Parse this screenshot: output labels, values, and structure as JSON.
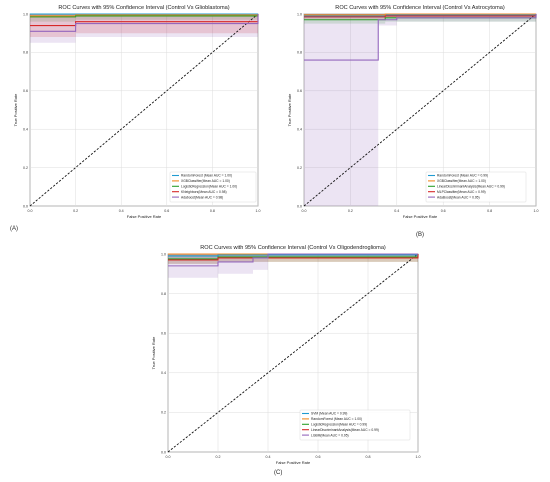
{
  "figure": {
    "panel_labels": [
      "(A)",
      "(B)",
      "(C)"
    ]
  },
  "chart_data": [
    {
      "type": "line",
      "title": "ROC Curves with 95% Confidence Interval  (Control Vs Glioblastoma)",
      "xlabel": "False Positive Rate",
      "ylabel": "True Positive Rate",
      "xlim": [
        0,
        1
      ],
      "ylim": [
        0,
        1
      ],
      "xticks": [
        "0.0",
        "0.2",
        "0.4",
        "0.6",
        "0.8",
        "1.0"
      ],
      "yticks": [
        "0.0",
        "0.2",
        "0.4",
        "0.6",
        "0.8",
        "1.0"
      ],
      "grid": true,
      "legend_position": "lower-right",
      "diagonal": true,
      "series": [
        {
          "name": "RandomForest (Mean AUC = 1.00)",
          "color": "#1f9bd1",
          "x": [
            0,
            0.2,
            1
          ],
          "y": [
            1.0,
            1.0,
            1.0
          ],
          "band_low": [
            0.99,
            0.99,
            1.0
          ],
          "band_high": [
            1.0,
            1.0,
            1.0
          ]
        },
        {
          "name": "XGBClassifier(Mean AUC = 1.00)",
          "color": "#f08a24",
          "x": [
            0,
            0.2,
            1
          ],
          "y": [
            0.99,
            0.995,
            1.0
          ],
          "band_low": [
            0.98,
            0.985,
            1.0
          ],
          "band_high": [
            1.0,
            1.0,
            1.0
          ]
        },
        {
          "name": "LogisticRegression(Mean AUC = 1.00)",
          "color": "#2ca02c",
          "x": [
            0,
            0.2,
            1
          ],
          "y": [
            0.985,
            0.99,
            1.0
          ],
          "band_low": [
            0.96,
            0.97,
            1.0
          ],
          "band_high": [
            1.0,
            1.0,
            1.0
          ]
        },
        {
          "name": "KNeighbors(Mean AUC = 0.98)",
          "color": "#d62728",
          "x": [
            0,
            0.2,
            1
          ],
          "y": [
            0.94,
            0.96,
            1.0
          ],
          "band_low": [
            0.88,
            0.9,
            1.0
          ],
          "band_high": [
            1.0,
            1.0,
            1.0
          ]
        },
        {
          "name": "Adaboost(Mean AUC = 0.98)",
          "color": "#9467bd",
          "x": [
            0,
            0.2,
            1
          ],
          "y": [
            0.91,
            0.95,
            1.0
          ],
          "band_low": [
            0.85,
            0.88,
            1.0
          ],
          "band_high": [
            1.0,
            1.0,
            1.0
          ]
        }
      ]
    },
    {
      "type": "line",
      "title": "ROC Curves with 95% Confidence Interval  (Control Vs Astrocytoma)",
      "xlabel": "False Positive Rate",
      "ylabel": "True Positive Rate",
      "xlim": [
        0,
        1
      ],
      "ylim": [
        0,
        1
      ],
      "xticks": [
        "0.0",
        "0.2",
        "0.4",
        "0.6",
        "0.8",
        "1.0"
      ],
      "yticks": [
        "0.0",
        "0.2",
        "0.4",
        "0.6",
        "0.8",
        "1.0"
      ],
      "grid": true,
      "legend_position": "lower-right",
      "diagonal": true,
      "series": [
        {
          "name": "RandomForest (Mean AUC = 0.99)",
          "color": "#1f9bd1",
          "x": [
            0,
            0.35,
            1
          ],
          "y": [
            0.99,
            0.995,
            1.0
          ],
          "band_low": [
            0.98,
            0.985,
            1.0
          ],
          "band_high": [
            1.0,
            1.0,
            1.0
          ]
        },
        {
          "name": "XGBClassifier(Mean AUC = 1.00)",
          "color": "#f08a24",
          "x": [
            0,
            0.35,
            1
          ],
          "y": [
            0.995,
            1.0,
            1.0
          ],
          "band_low": [
            0.99,
            0.99,
            1.0
          ],
          "band_high": [
            1.0,
            1.0,
            1.0
          ]
        },
        {
          "name": "LinearDiscriminantAnalysis(Mean AUC = 0.99)",
          "color": "#2ca02c",
          "x": [
            0,
            0.35,
            1
          ],
          "y": [
            0.97,
            0.98,
            1.0
          ],
          "band_low": [
            0.95,
            0.96,
            1.0
          ],
          "band_high": [
            1.0,
            1.0,
            1.0
          ]
        },
        {
          "name": "MLPClassifier(Mean AUC = 0.99)",
          "color": "#d62728",
          "x": [
            0,
            0.35,
            1
          ],
          "y": [
            0.985,
            0.99,
            1.0
          ],
          "band_low": [
            0.97,
            0.98,
            1.0
          ],
          "band_high": [
            1.0,
            1.0,
            1.0
          ]
        },
        {
          "name": "AdaBoost(Mean AUC = 0.95)",
          "color": "#9467bd",
          "x": [
            0,
            0.32,
            0.4,
            1
          ],
          "y": [
            0.76,
            0.97,
            0.98,
            1.0
          ],
          "band_low": [
            0.0,
            0.94,
            0.96,
            1.0
          ],
          "band_high": [
            1.0,
            1.0,
            1.0,
            1.0
          ]
        }
      ]
    },
    {
      "type": "line",
      "title": "ROC Curves with 95% Confidence Interval  (Control Vs Oligodendroglioma)",
      "xlabel": "False Positive Rate",
      "ylabel": "True Positive Rate",
      "xlim": [
        0,
        1
      ],
      "ylim": [
        0,
        1
      ],
      "xticks": [
        "0.0",
        "0.2",
        "0.4",
        "0.6",
        "0.8",
        "1.0"
      ],
      "yticks": [
        "0.0",
        "0.2",
        "0.4",
        "0.6",
        "0.8",
        "1.0"
      ],
      "grid": true,
      "legend_position": "lower-right",
      "diagonal": true,
      "series": [
        {
          "name": "SVM (Mean AUC = 0.99)",
          "color": "#1f9bd1",
          "x": [
            0,
            0.2,
            1
          ],
          "y": [
            0.99,
            0.995,
            1.0
          ],
          "band_low": [
            0.97,
            0.98,
            1.0
          ],
          "band_high": [
            1.0,
            1.0,
            1.0
          ]
        },
        {
          "name": "RandomForest (Mean AUC = 1.00)",
          "color": "#f08a24",
          "x": [
            0,
            0.2,
            1
          ],
          "y": [
            1.0,
            1.0,
            1.0
          ],
          "band_low": [
            0.99,
            0.99,
            1.0
          ],
          "band_high": [
            1.0,
            1.0,
            1.0
          ]
        },
        {
          "name": "LogisticRegression(Mean AUC = 0.99)",
          "color": "#2ca02c",
          "x": [
            0,
            0.2,
            1
          ],
          "y": [
            0.975,
            0.985,
            1.0
          ],
          "band_low": [
            0.95,
            0.96,
            1.0
          ],
          "band_high": [
            1.0,
            1.0,
            1.0
          ]
        },
        {
          "name": "LinearDiscriminantAnalysis(Mean AUC = 0.99)",
          "color": "#d62728",
          "x": [
            0,
            0.2,
            1
          ],
          "y": [
            0.97,
            0.98,
            1.0
          ],
          "band_low": [
            0.95,
            0.96,
            1.0
          ],
          "band_high": [
            1.0,
            1.0,
            1.0
          ]
        },
        {
          "name": "LGBM(Mean AUC = 0.95)",
          "color": "#9467bd",
          "x": [
            0,
            0.2,
            0.34,
            0.4,
            1
          ],
          "y": [
            0.94,
            0.96,
            0.98,
            1.0,
            1.0
          ],
          "band_low": [
            0.88,
            0.9,
            0.92,
            1.0,
            1.0
          ],
          "band_high": [
            1.0,
            1.0,
            1.0,
            1.0,
            1.0
          ]
        }
      ]
    }
  ]
}
